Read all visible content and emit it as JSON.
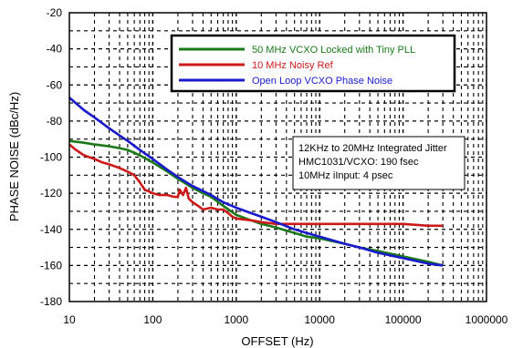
{
  "chart_data": {
    "type": "line",
    "xlabel": "OFFSET (Hz)",
    "ylabel": "PHASE NOISE (dBc/Hz)",
    "xscale": "log",
    "xlim": [
      10,
      1000000
    ],
    "ylim": [
      -180,
      -20
    ],
    "x_ticks": [
      10,
      100,
      1000,
      10000,
      100000,
      1000000
    ],
    "x_tick_labels": [
      "10",
      "100",
      "1000",
      "10000",
      "100000",
      "1000000"
    ],
    "y_ticks": [
      -20,
      -40,
      -60,
      -80,
      -100,
      -120,
      -140,
      -160,
      -180
    ],
    "y_tick_labels": [
      "-20",
      "-40",
      "-60",
      "-80",
      "-100",
      "-120",
      "-140",
      "-160",
      "-180"
    ],
    "grid": "dashed, major and minor",
    "legend_position": "top-right",
    "series": [
      {
        "name": "50 MHz VCXO Locked with Tiny PLL",
        "color": "#1a7a1a",
        "points": [
          [
            10,
            -91
          ],
          [
            15,
            -92
          ],
          [
            20,
            -93
          ],
          [
            30,
            -94
          ],
          [
            40,
            -95
          ],
          [
            50,
            -96
          ],
          [
            70,
            -99
          ],
          [
            100,
            -103
          ],
          [
            150,
            -108
          ],
          [
            200,
            -112
          ],
          [
            300,
            -117
          ],
          [
            400,
            -120
          ],
          [
            500,
            -122
          ],
          [
            700,
            -127
          ],
          [
            1000,
            -132
          ],
          [
            1500,
            -135
          ],
          [
            2000,
            -137
          ],
          [
            3000,
            -139
          ],
          [
            5000,
            -142
          ],
          [
            7000,
            -144
          ],
          [
            10000,
            -145
          ],
          [
            20000,
            -148
          ],
          [
            30000,
            -150
          ],
          [
            50000,
            -152
          ],
          [
            100000,
            -155
          ],
          [
            200000,
            -158
          ],
          [
            300000,
            -160
          ]
        ]
      },
      {
        "name": "10 MHz Noisy Ref",
        "color": "#cc1a1a",
        "points": [
          [
            10,
            -93
          ],
          [
            12,
            -96
          ],
          [
            15,
            -99
          ],
          [
            20,
            -101
          ],
          [
            25,
            -103
          ],
          [
            30,
            -104
          ],
          [
            40,
            -106
          ],
          [
            50,
            -108
          ],
          [
            60,
            -110
          ],
          [
            70,
            -114
          ],
          [
            80,
            -118
          ],
          [
            100,
            -120
          ],
          [
            120,
            -121
          ],
          [
            150,
            -121
          ],
          [
            180,
            -122
          ],
          [
            200,
            -122
          ],
          [
            210,
            -118
          ],
          [
            230,
            -121
          ],
          [
            250,
            -117
          ],
          [
            270,
            -123
          ],
          [
            300,
            -125
          ],
          [
            350,
            -127
          ],
          [
            400,
            -129
          ],
          [
            500,
            -128
          ],
          [
            600,
            -129
          ],
          [
            700,
            -129
          ],
          [
            800,
            -131
          ],
          [
            900,
            -133
          ],
          [
            1000,
            -134
          ],
          [
            1500,
            -135
          ],
          [
            2000,
            -136
          ],
          [
            3000,
            -137
          ],
          [
            5000,
            -137
          ],
          [
            10000,
            -137
          ],
          [
            20000,
            -137
          ],
          [
            50000,
            -137
          ],
          [
            100000,
            -137
          ],
          [
            200000,
            -138
          ],
          [
            300000,
            -138
          ]
        ]
      },
      {
        "name": "Open Loop VCXO Phase Noise",
        "color": "#1a1acc",
        "points": [
          [
            10,
            -67
          ],
          [
            15,
            -74
          ],
          [
            20,
            -78
          ],
          [
            30,
            -84
          ],
          [
            40,
            -88
          ],
          [
            50,
            -91
          ],
          [
            70,
            -96
          ],
          [
            100,
            -101
          ],
          [
            150,
            -107
          ],
          [
            200,
            -111
          ],
          [
            300,
            -116
          ],
          [
            500,
            -121
          ],
          [
            700,
            -125
          ],
          [
            1000,
            -128
          ],
          [
            1500,
            -131
          ],
          [
            2000,
            -133
          ],
          [
            3000,
            -136
          ],
          [
            5000,
            -140
          ],
          [
            7000,
            -142
          ],
          [
            10000,
            -144
          ],
          [
            20000,
            -148
          ],
          [
            30000,
            -150
          ],
          [
            50000,
            -153
          ],
          [
            100000,
            -156
          ],
          [
            200000,
            -159
          ],
          [
            300000,
            -160
          ]
        ]
      }
    ],
    "annotation": {
      "lines": [
        "12KHz to 20MHz Integrated Jitter",
        "HMC1031/VCXO: 190 fsec",
        "10MHz iInput: 4 psec"
      ]
    }
  }
}
